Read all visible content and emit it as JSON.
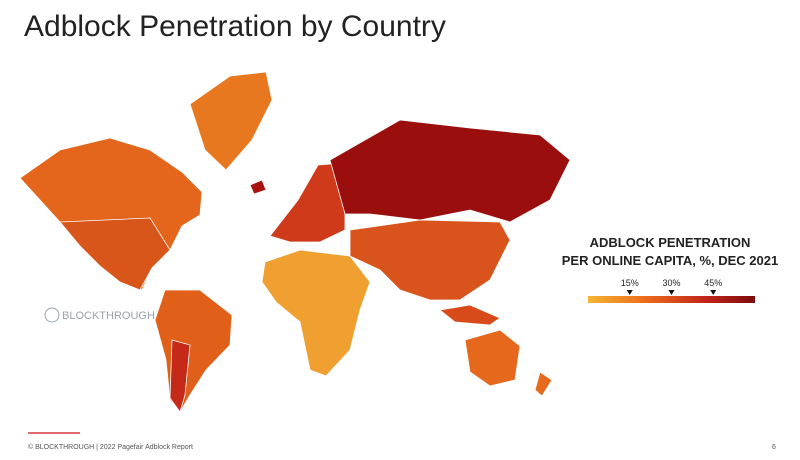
{
  "title": "Adblock Penetration by Country",
  "legend": {
    "title_lines": [
      "ADBLOCK PENETRATION",
      "PER ONLINE CAPITA, %, DEC 2021"
    ],
    "lim": [
      0,
      60
    ],
    "ticks": [
      {
        "value": 15,
        "label": "15%"
      },
      {
        "value": 30,
        "label": "30%"
      },
      {
        "value": 45,
        "label": "45%"
      }
    ]
  },
  "watermark": "BLOCKTHROUGH",
  "footer": {
    "source": "© BLOCKTHROUGH | 2022 Pagefair Adblock Report",
    "page": "6"
  }
}
